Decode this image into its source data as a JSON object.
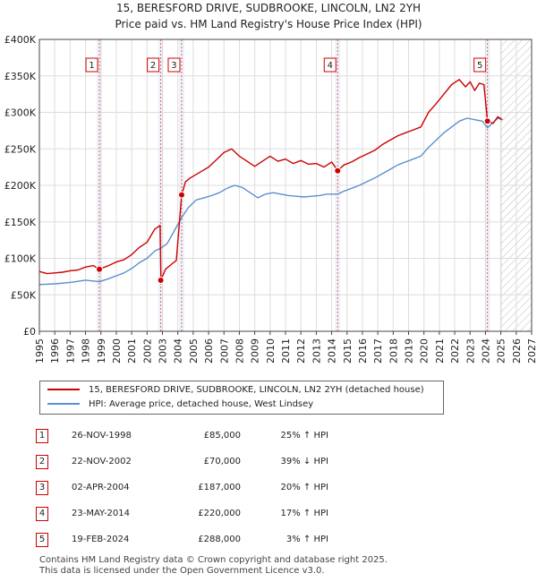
{
  "title_line1": "15, BERESFORD DRIVE, SUDBROOKE, LINCOLN, LN2 2YH",
  "title_line2": "Price paid vs. HM Land Registry's House Price Index (HPI)",
  "chart_data": {
    "type": "line",
    "x_ticks": [
      "1995",
      "1996",
      "1997",
      "1998",
      "1999",
      "2000",
      "2001",
      "2002",
      "2003",
      "2004",
      "2005",
      "2006",
      "2007",
      "2008",
      "2009",
      "2010",
      "2011",
      "2012",
      "2013",
      "2014",
      "2015",
      "2016",
      "2017",
      "2018",
      "2019",
      "2020",
      "2021",
      "2022",
      "2023",
      "2024",
      "2025",
      "2026",
      "2027"
    ],
    "y_ticks": [
      "£0",
      "£50K",
      "£100K",
      "£150K",
      "£200K",
      "£250K",
      "£300K",
      "£350K",
      "£400K"
    ],
    "xlim": [
      1995,
      2027
    ],
    "ylim": [
      0,
      400000
    ],
    "projection_start": 2025.0,
    "colors": {
      "property": "#cc0000",
      "hpi": "#5b8fcf",
      "sale_line": "#dd6666",
      "sale_shade": "#eef2fa"
    },
    "series": [
      {
        "name": "15, BERESFORD DRIVE, SUDBROOKE, LINCOLN, LN2 2YH (detached house)",
        "color": "#cc0000",
        "x": [
          1995.0,
          1995.5,
          1996.0,
          1996.5,
          1997.0,
          1997.5,
          1998.0,
          1998.5,
          1998.9,
          1999.5,
          2000.0,
          2000.5,
          2001.0,
          2001.5,
          2002.0,
          2002.5,
          2002.85,
          2002.9,
          2003.2,
          2003.6,
          2003.9,
          2004.25,
          2004.5,
          2004.8,
          2005.2,
          2005.6,
          2006.0,
          2006.5,
          2007.0,
          2007.5,
          2008.0,
          2008.5,
          2009.0,
          2009.5,
          2010.0,
          2010.5,
          2011.0,
          2011.5,
          2012.0,
          2012.5,
          2013.0,
          2013.5,
          2014.0,
          2014.39,
          2014.8,
          2015.3,
          2015.8,
          2016.3,
          2016.8,
          2017.3,
          2017.8,
          2018.3,
          2018.8,
          2019.3,
          2019.8,
          2020.3,
          2020.8,
          2021.3,
          2021.8,
          2022.3,
          2022.7,
          2023.0,
          2023.3,
          2023.6,
          2023.9,
          2024.13,
          2024.5,
          2024.8,
          2025.1
        ],
        "y": [
          82000,
          79000,
          80000,
          81000,
          83000,
          84000,
          88000,
          90000,
          85000,
          90000,
          95000,
          98000,
          105000,
          115000,
          122000,
          140000,
          145000,
          70000,
          85000,
          92000,
          97000,
          187000,
          205000,
          210000,
          215000,
          220000,
          225000,
          235000,
          245000,
          250000,
          240000,
          233000,
          226000,
          233000,
          240000,
          233000,
          236000,
          230000,
          234000,
          229000,
          230000,
          225000,
          232000,
          220000,
          228000,
          232000,
          238000,
          243000,
          248000,
          256000,
          262000,
          268000,
          272000,
          276000,
          280000,
          300000,
          312000,
          325000,
          338000,
          345000,
          335000,
          342000,
          330000,
          340000,
          338000,
          288000,
          285000,
          294000,
          290000
        ]
      },
      {
        "name": "HPI: Average price, detached house, West Lindsey",
        "color": "#5b8fcf",
        "x": [
          1995.0,
          1996.0,
          1997.0,
          1998.0,
          1998.9,
          1999.5,
          2000.0,
          2000.5,
          2001.0,
          2001.5,
          2002.0,
          2002.5,
          2002.9,
          2003.3,
          2003.7,
          2004.25,
          2004.7,
          2005.2,
          2005.7,
          2006.2,
          2006.7,
          2007.2,
          2007.7,
          2008.2,
          2008.7,
          2009.2,
          2009.7,
          2010.2,
          2010.7,
          2011.2,
          2011.7,
          2012.2,
          2012.7,
          2013.2,
          2013.7,
          2014.39,
          2014.8,
          2015.3,
          2015.8,
          2016.3,
          2016.8,
          2017.3,
          2017.8,
          2018.3,
          2018.8,
          2019.3,
          2019.8,
          2020.3,
          2020.8,
          2021.3,
          2021.8,
          2022.3,
          2022.8,
          2023.3,
          2023.8,
          2024.13,
          2024.5,
          2024.8,
          2025.1
        ],
        "y": [
          64000,
          65000,
          67000,
          70000,
          68000,
          72000,
          76000,
          80000,
          86000,
          94000,
          100000,
          110000,
          114000,
          120000,
          135000,
          156000,
          170000,
          180000,
          183000,
          186000,
          190000,
          196000,
          200000,
          197000,
          190000,
          183000,
          188000,
          190000,
          188000,
          186000,
          185000,
          184000,
          185000,
          186000,
          188000,
          188000,
          192000,
          196000,
          200000,
          205000,
          210000,
          216000,
          222000,
          228000,
          232000,
          236000,
          240000,
          252000,
          262000,
          272000,
          280000,
          288000,
          292000,
          290000,
          288000,
          279000,
          286000,
          292000,
          290000
        ]
      }
    ],
    "sales": [
      {
        "n": "1",
        "x": 1998.9,
        "y": 85000
      },
      {
        "n": "2",
        "x": 2002.89,
        "y": 70000
      },
      {
        "n": "3",
        "x": 2004.25,
        "y": 187000
      },
      {
        "n": "4",
        "x": 2014.39,
        "y": 220000
      },
      {
        "n": "5",
        "x": 2024.13,
        "y": 288000
      }
    ]
  },
  "legend": [
    {
      "label": "15, BERESFORD DRIVE, SUDBROOKE, LINCOLN, LN2 2YH (detached house)",
      "color": "#cc0000"
    },
    {
      "label": "HPI: Average price, detached house, West Lindsey",
      "color": "#5b8fcf"
    }
  ],
  "table": [
    {
      "num": "1",
      "date": "26-NOV-1998",
      "price": "£85,000",
      "hpi": "25% ↑ HPI"
    },
    {
      "num": "2",
      "date": "22-NOV-2002",
      "price": "£70,000",
      "hpi": "39% ↓ HPI"
    },
    {
      "num": "3",
      "date": "02-APR-2004",
      "price": "£187,000",
      "hpi": "20% ↑ HPI"
    },
    {
      "num": "4",
      "date": "23-MAY-2014",
      "price": "£220,000",
      "hpi": "17% ↑ HPI"
    },
    {
      "num": "5",
      "date": "19-FEB-2024",
      "price": "£288,000",
      "hpi": "3% ↑ HPI"
    }
  ],
  "footer_line1": "Contains HM Land Registry data © Crown copyright and database right 2025.",
  "footer_line2": "This data is licensed under the Open Government Licence v3.0."
}
